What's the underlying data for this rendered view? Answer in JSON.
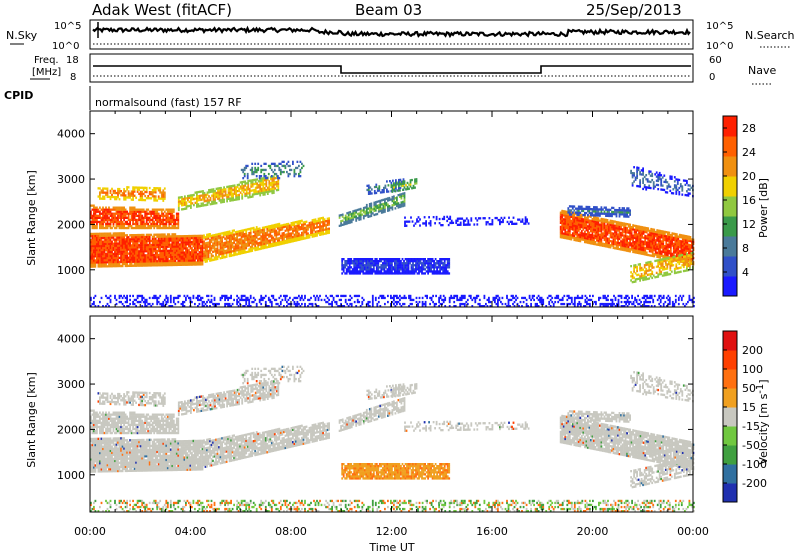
{
  "header": {
    "station": "Adak West (fitACF)",
    "beam": "Beam 03",
    "date": "25/Sep/2013"
  },
  "panels": {
    "nsky_label": "N.Sky",
    "nsky_ticks": [
      "10^5",
      "10^0"
    ],
    "nsearch_label": "N.Search",
    "freq_label_1": "Freq.",
    "freq_label_2": "[MHz]",
    "freq_ticks": [
      "18",
      "8"
    ],
    "nave_label": "Nave",
    "nave_ticks": [
      "60",
      "0"
    ],
    "cpid_label": "CPID",
    "cpid_text": "normalsound (fast) 157 RF"
  },
  "chart_data": [
    {
      "type": "heatmap",
      "name": "Power",
      "ylabel": "Slant Range [km]",
      "xlabel": "Time UT",
      "x_ticks": [
        "00:00",
        "04:00",
        "08:00",
        "12:00",
        "16:00",
        "20:00",
        "00:00"
      ],
      "x_range_hours": [
        0,
        24
      ],
      "y_ticks": [
        1000,
        2000,
        3000,
        4000
      ],
      "y_range_km": [
        180,
        4500
      ],
      "colorbar": {
        "label": "Power [dB]",
        "ticks": [
          "4",
          "8",
          "12",
          "16",
          "20",
          "24",
          "28"
        ],
        "range": [
          0,
          30
        ],
        "colors": [
          "#1a1aff",
          "#3050c8",
          "#4a7a9a",
          "#3a9a4a",
          "#90c840",
          "#f0d000",
          "#f09010",
          "#ff6000",
          "#ff2000"
        ]
      }
    },
    {
      "type": "heatmap",
      "name": "Velocity",
      "ylabel": "Slant Range [km]",
      "xlabel": "Time UT",
      "x_ticks": [
        "00:00",
        "04:00",
        "08:00",
        "12:00",
        "16:00",
        "20:00",
        "00:00"
      ],
      "x_range_hours": [
        0,
        24
      ],
      "y_ticks": [
        1000,
        2000,
        3000,
        4000
      ],
      "y_range_km": [
        180,
        4500
      ],
      "colorbar": {
        "label": "Velocity [m s",
        "label_sup": "-1",
        "label_end": "]",
        "ticks": [
          "200",
          "100",
          "50",
          "15",
          "-15",
          "-50",
          "-100",
          "-200"
        ],
        "colors": [
          "#2030b0",
          "#3070a0",
          "#40a040",
          "#70c840",
          "#c8c8c0",
          "#f0a020",
          "#ff7010",
          "#ff4000",
          "#e01010"
        ]
      }
    }
  ],
  "x_axis_label": "Time UT"
}
